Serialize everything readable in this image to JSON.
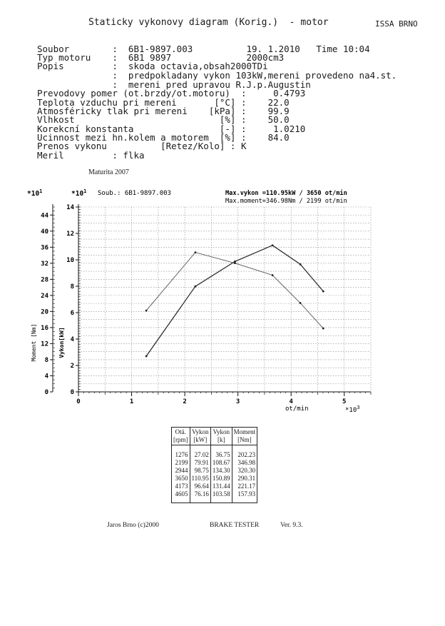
{
  "header": {
    "title": "Staticky vykonovy diagram (Korig.)  - motor",
    "company": "ISSA BRNO"
  },
  "info": {
    "line1": "Soubor        :  6B1-9897.003          19. 1.2010   Time 10:04",
    "line2": "Typ motoru    :  6B1 9897              2000cm3",
    "line3": "Popis         :  skoda octavia,obsah2000TDi",
    "line4": "              :  predpokladany vykon 103kW,mereni provedeno na4.st.",
    "line5": "              :  mereni pred upravou R.J.p.Augustin",
    "line6": "Prevodovy pomer (ot.brzdy/ot.motoru)  :     0.4793",
    "line7": "Teplota vzduchu pri mereni       [°C] :    22.0",
    "line8": "Atmosféricky tlak pri mereni    [kPa] :    99.9",
    "line9": "Vlhkost                           [%] :    50.0",
    "line10": "Korekcní konstanta                [-] :     1.0210",
    "line11": "Ucinnost mezi hn.kolem a motorem  [%] :    84.0",
    "line12": "Prenos vykonu          [Retez/Kolo] : K",
    "line13": "Meril         : flka"
  },
  "maturita": "Maturita 2007",
  "chart_header": {
    "left_mult": "*10",
    "left_exp": "1",
    "right_mult": "*10",
    "right_exp": "1",
    "soub": "Soub.:  6B1-9897.003",
    "max_vykon": "Max.vykon =110.95kW /  3650 ot/min",
    "max_moment": "Max.moment=346.98Nm /  2199 ot/min",
    "x_unit": "ot/min",
    "x_mult": "*10",
    "x_exp": "3"
  },
  "chart_data": {
    "type": "line",
    "x": [
      1276,
      2199,
      2944,
      3650,
      4173,
      4605
    ],
    "series": [
      {
        "name": "Vykon [kW]",
        "axis": "power",
        "values": [
          27.02,
          79.91,
          98.75,
          110.95,
          96.64,
          76.16
        ]
      },
      {
        "name": "Moment [Nm]",
        "axis": "moment",
        "values": [
          202.23,
          346.98,
          320.3,
          290.31,
          221.17,
          157.93
        ]
      }
    ],
    "xlabel": "ot/min",
    "ylabel_left": "Moment [Nm]",
    "ylabel_right": "Vykon[kW]",
    "xlim": [
      0,
      5500
    ],
    "ylim_moment": [
      0,
      460
    ],
    "ylim_power": [
      0,
      140
    ],
    "x_ticks": [
      "0",
      "1",
      "2",
      "3",
      "4",
      "5"
    ],
    "moment_ticks": [
      "0",
      "4",
      "8",
      "12",
      "16",
      "20",
      "24",
      "28",
      "32",
      "36",
      "40",
      "44"
    ],
    "power_ticks": [
      "0",
      "2",
      "4",
      "6",
      "8",
      "10",
      "12",
      "14"
    ],
    "grid": true
  },
  "table": {
    "headers": [
      [
        "Otá.",
        "[rpm]"
      ],
      [
        "Vykon",
        "[kW]"
      ],
      [
        "Vykon",
        "[k]"
      ],
      [
        "Moment",
        "[Nm]"
      ]
    ],
    "rows": [
      [
        "1276",
        "27.02",
        "36.75",
        "202.23"
      ],
      [
        "2199",
        "79.91",
        "108.67",
        "346.98"
      ],
      [
        "2944",
        "98.75",
        "134.30",
        "320.30"
      ],
      [
        "3650",
        "110.95",
        "150.89",
        "290.31"
      ],
      [
        "4173",
        "96.64",
        "131.44",
        "221.17"
      ],
      [
        "4605",
        "76.16",
        "103.58",
        "157.93"
      ]
    ]
  },
  "footer": {
    "left": "Jaros Brno (c)2000",
    "center": "BRAKE TESTER",
    "right": "Ver. 9.3."
  }
}
